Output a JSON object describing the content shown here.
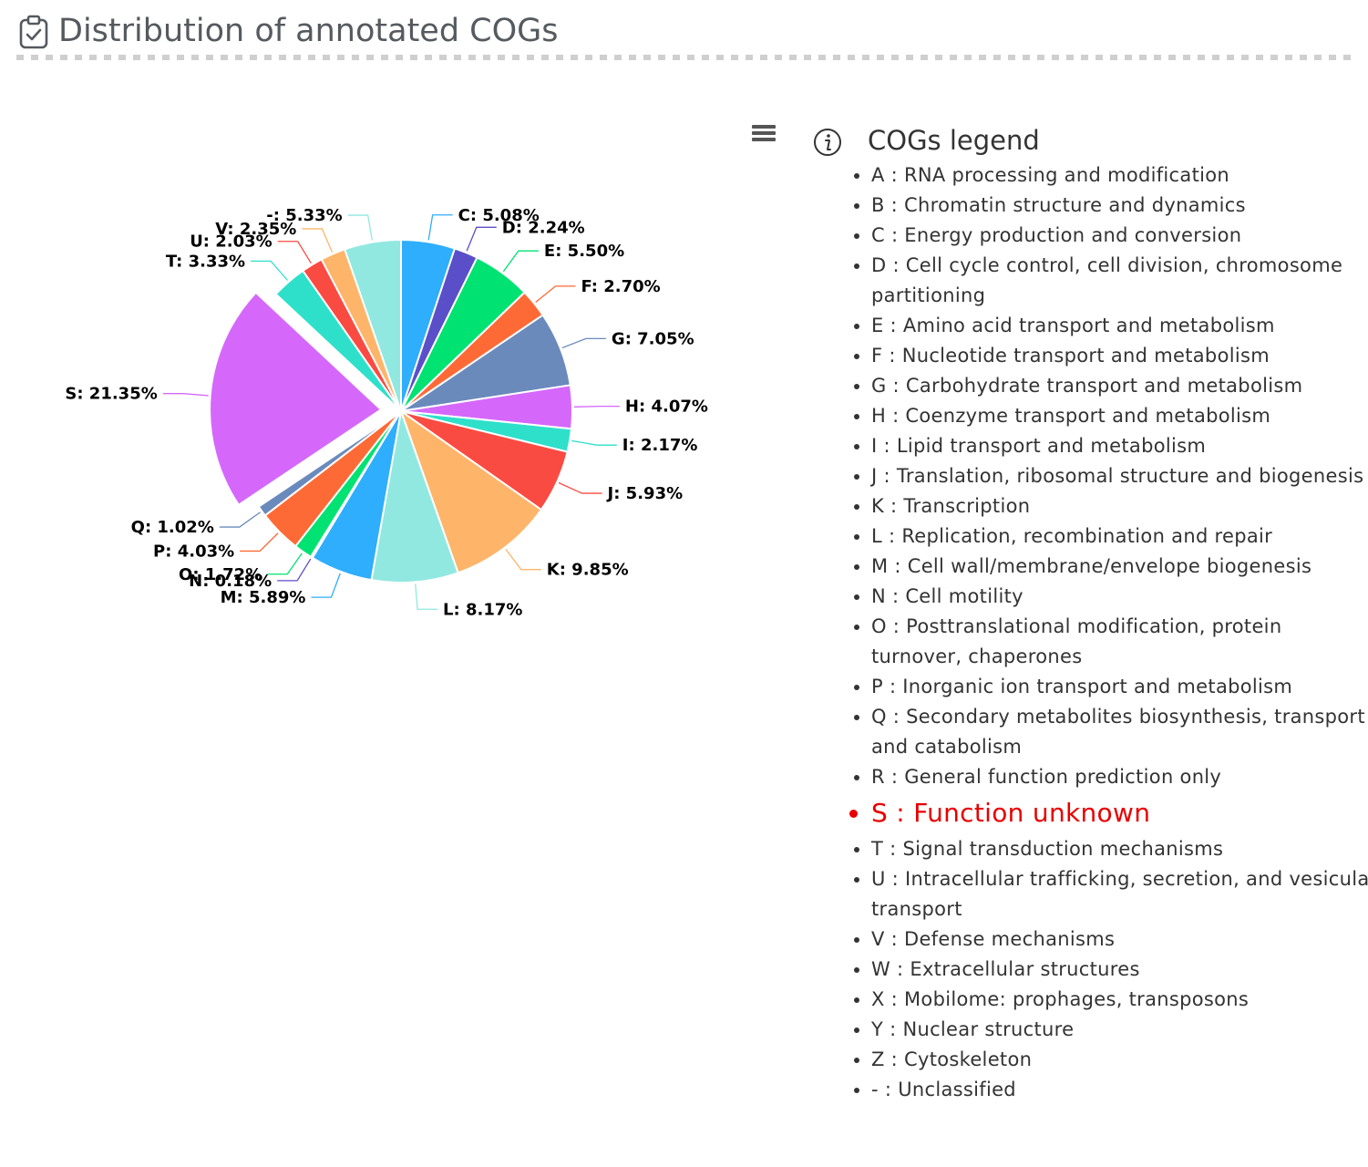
{
  "header": {
    "title": "Distribution of annotated COGs",
    "icon": "clipboard-check-icon"
  },
  "toolbar": {
    "menu_icon": "hamburger-menu-icon"
  },
  "legend": {
    "title": "COGs legend",
    "info_icon": "info-icon",
    "highlight_color": "#e80000",
    "items": [
      {
        "code": "A",
        "text": "A : RNA processing and modification",
        "highlight": false
      },
      {
        "code": "B",
        "text": "B : Chromatin structure and dynamics",
        "highlight": false
      },
      {
        "code": "C",
        "text": "C : Energy production and conversion",
        "highlight": false
      },
      {
        "code": "D",
        "text": "D : Cell cycle control, cell division, chromosome partitioning",
        "highlight": false
      },
      {
        "code": "E",
        "text": "E : Amino acid transport and metabolism",
        "highlight": false
      },
      {
        "code": "F",
        "text": "F : Nucleotide transport and metabolism",
        "highlight": false
      },
      {
        "code": "G",
        "text": "G : Carbohydrate transport and metabolism",
        "highlight": false
      },
      {
        "code": "H",
        "text": "H : Coenzyme transport and metabolism",
        "highlight": false
      },
      {
        "code": "I",
        "text": "I : Lipid transport and metabolism",
        "highlight": false
      },
      {
        "code": "J",
        "text": "J : Translation, ribosomal structure and biogenesis",
        "highlight": false
      },
      {
        "code": "K",
        "text": "K : Transcription",
        "highlight": false
      },
      {
        "code": "L",
        "text": "L : Replication, recombination and repair",
        "highlight": false
      },
      {
        "code": "M",
        "text": "M : Cell wall/membrane/envelope biogenesis",
        "highlight": false
      },
      {
        "code": "N",
        "text": "N : Cell motility",
        "highlight": false
      },
      {
        "code": "O",
        "text": "O : Posttranslational modification, protein turnover, chaperones",
        "highlight": false
      },
      {
        "code": "P",
        "text": "P : Inorganic ion transport and metabolism",
        "highlight": false
      },
      {
        "code": "Q",
        "text": "Q : Secondary metabolites biosynthesis, transport and catabolism",
        "highlight": false
      },
      {
        "code": "R",
        "text": "R : General function prediction only",
        "highlight": false
      },
      {
        "code": "S",
        "text": "S : Function unknown",
        "highlight": true
      },
      {
        "code": "T",
        "text": "T : Signal transduction mechanisms",
        "highlight": false
      },
      {
        "code": "U",
        "text": "U : Intracellular trafficking, secretion, and vesicular transport",
        "highlight": false
      },
      {
        "code": "V",
        "text": "V : Defense mechanisms",
        "highlight": false
      },
      {
        "code": "W",
        "text": "W : Extracellular structures",
        "highlight": false
      },
      {
        "code": "X",
        "text": "X : Mobilome: prophages, transposons",
        "highlight": false
      },
      {
        "code": "Y",
        "text": "Y : Nuclear structure",
        "highlight": false
      },
      {
        "code": "Z",
        "text": "Z : Cytoskeleton",
        "highlight": false
      },
      {
        "code": "-",
        "text": "- : Unclassified",
        "highlight": false
      }
    ]
  },
  "chart_data": {
    "type": "pie",
    "title": "Distribution of annotated COGs",
    "unit": "%",
    "sliced_category": "S",
    "slices": [
      {
        "label": "C",
        "value": 5.08,
        "display": "C: 5.08%",
        "color": "#2eaefc"
      },
      {
        "label": "D",
        "value": 2.24,
        "display": "D: 2.24%",
        "color": "#5a4fc9"
      },
      {
        "label": "E",
        "value": 5.5,
        "display": "E: 5.50%",
        "color": "#00e272"
      },
      {
        "label": "F",
        "value": 2.7,
        "display": "F: 2.70%",
        "color": "#fe6a35"
      },
      {
        "label": "G",
        "value": 7.05,
        "display": "G: 7.05%",
        "color": "#6b8abc"
      },
      {
        "label": "H",
        "value": 4.07,
        "display": "H: 4.07%",
        "color": "#d568fb"
      },
      {
        "label": "I",
        "value": 2.17,
        "display": "I: 2.17%",
        "color": "#2ee0ca"
      },
      {
        "label": "J",
        "value": 5.93,
        "display": "J: 5.93%",
        "color": "#fa4b42"
      },
      {
        "label": "K",
        "value": 9.85,
        "display": "K: 9.85%",
        "color": "#feb56a"
      },
      {
        "label": "L",
        "value": 8.17,
        "display": "L: 8.17%",
        "color": "#91e8e1"
      },
      {
        "label": "M",
        "value": 5.89,
        "display": "M: 5.89%",
        "color": "#2eaefc"
      },
      {
        "label": "N",
        "value": 0.18,
        "display": "N: 0.18%",
        "color": "#5a4fc9"
      },
      {
        "label": "O",
        "value": 1.72,
        "display": "O: 1.72%",
        "color": "#00e272"
      },
      {
        "label": "P",
        "value": 4.03,
        "display": "P: 4.03%",
        "color": "#fe6a35"
      },
      {
        "label": "Q",
        "value": 1.02,
        "display": "Q: 1.02%",
        "color": "#6b8abc"
      },
      {
        "label": "S",
        "value": 21.35,
        "display": "S: 21.35%",
        "color": "#d568fb"
      },
      {
        "label": "T",
        "value": 3.33,
        "display": "T: 3.33%",
        "color": "#2ee0ca"
      },
      {
        "label": "U",
        "value": 2.03,
        "display": "U: 2.03%",
        "color": "#fa4b42"
      },
      {
        "label": "V",
        "value": 2.35,
        "display": "V: 2.35%",
        "color": "#feb56a"
      },
      {
        "label": "-",
        "value": 5.33,
        "display": "-: 5.33%",
        "color": "#91e8e1"
      }
    ]
  }
}
